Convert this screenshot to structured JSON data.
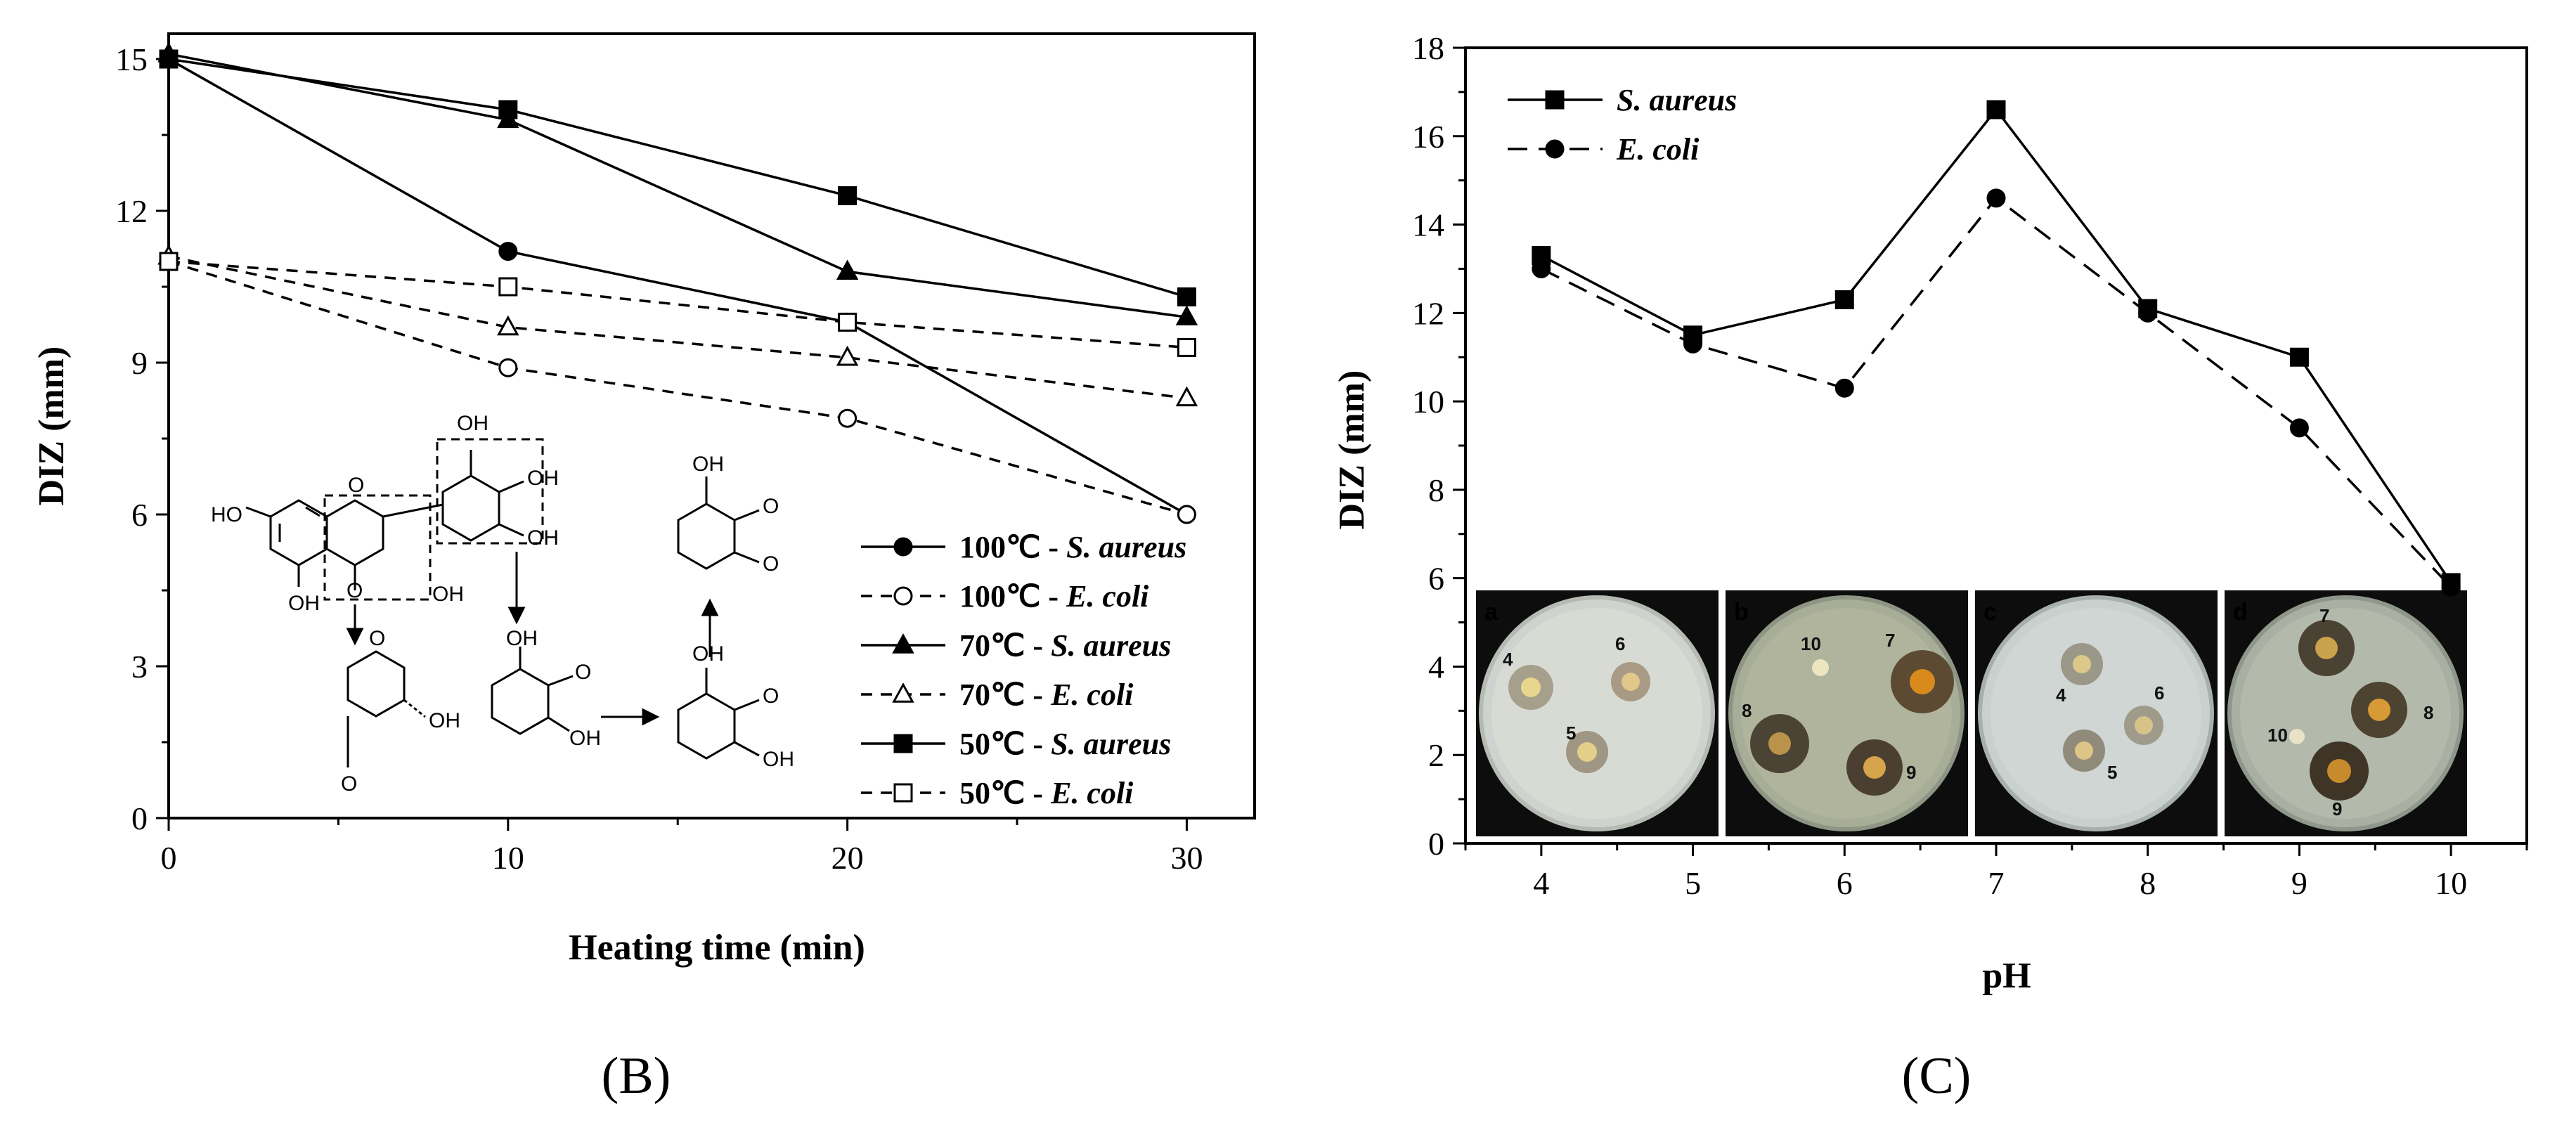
{
  "panels": {
    "left": "(B)",
    "right": "(C)"
  },
  "chart_data": [
    {
      "type": "line",
      "title": "",
      "xlabel": "Heating time (min)",
      "ylabel": "DIZ (mm)",
      "xlim": [
        0,
        32
      ],
      "ylim": [
        0,
        15.5
      ],
      "xticks": [
        0,
        10,
        20,
        30
      ],
      "yticks": [
        0,
        3,
        6,
        9,
        12,
        15
      ],
      "x": [
        0,
        10,
        20,
        30
      ],
      "series": [
        {
          "name": "100℃ - ",
          "organism": "S. aureus",
          "values": [
            15.0,
            11.2,
            9.8,
            6.0
          ],
          "marker": "circle",
          "filled": true,
          "dashed": false
        },
        {
          "name": "100℃ - ",
          "organism": "E. coli",
          "values": [
            11.0,
            8.9,
            7.9,
            6.0
          ],
          "marker": "circle",
          "filled": false,
          "dashed": true
        },
        {
          "name": "70℃ - ",
          "organism": "S. aureus",
          "values": [
            15.1,
            13.8,
            10.8,
            9.9
          ],
          "marker": "triangle",
          "filled": true,
          "dashed": false
        },
        {
          "name": "70℃ - ",
          "organism": "E. coli",
          "values": [
            11.1,
            9.7,
            9.1,
            8.3
          ],
          "marker": "triangle",
          "filled": false,
          "dashed": true
        },
        {
          "name": "50℃ - ",
          "organism": "S. aureus",
          "values": [
            15.0,
            14.0,
            12.3,
            10.3
          ],
          "marker": "square",
          "filled": true,
          "dashed": false
        },
        {
          "name": "50℃ - ",
          "organism": "E. coli",
          "values": [
            11.0,
            10.5,
            9.8,
            9.3
          ],
          "marker": "square",
          "filled": false,
          "dashed": true
        }
      ],
      "legend_position": "right",
      "inset": {
        "description": "chemical structures",
        "labels": [
          "OH",
          "HO",
          "O"
        ]
      }
    },
    {
      "type": "line",
      "title": "",
      "xlabel": "pH",
      "ylabel": "DIZ (mm)",
      "xlim": [
        3.5,
        10.5
      ],
      "ylim": [
        0,
        18
      ],
      "xticks": [
        4,
        5,
        6,
        7,
        8,
        9,
        10
      ],
      "yticks": [
        0,
        2,
        4,
        6,
        8,
        10,
        12,
        14,
        16,
        18
      ],
      "x": [
        4,
        5,
        6,
        7,
        8,
        9,
        10
      ],
      "series": [
        {
          "name": "S. aureus",
          "values": [
            13.3,
            11.5,
            12.3,
            16.6,
            12.1,
            11.0,
            5.9
          ],
          "marker": "square",
          "filled": true,
          "dashed": false
        },
        {
          "name": "E. coli",
          "values": [
            13.0,
            11.3,
            10.3,
            14.6,
            12.0,
            9.4,
            5.8
          ],
          "marker": "circle",
          "filled": true,
          "dashed": true
        }
      ],
      "legend_position": "top-left",
      "plates": [
        {
          "label": "a",
          "numbers": [
            "4",
            "5",
            "6"
          ]
        },
        {
          "label": "b",
          "numbers": [
            "10",
            "7",
            "8",
            "9"
          ]
        },
        {
          "label": "c",
          "numbers": [
            "4",
            "6",
            "5"
          ]
        },
        {
          "label": "d",
          "numbers": [
            "7",
            "10",
            "8",
            "9"
          ]
        }
      ]
    }
  ]
}
